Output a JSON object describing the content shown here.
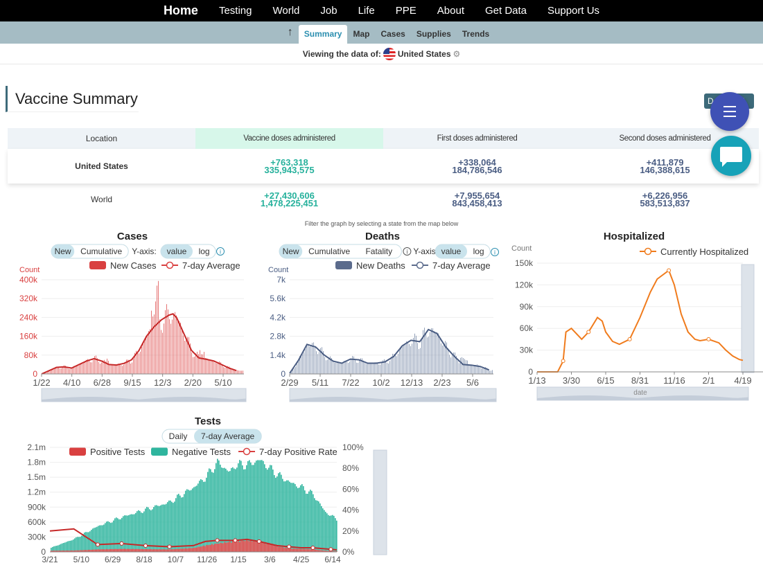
{
  "nav": {
    "items": [
      "Home",
      "Testing",
      "World",
      "Job",
      "Life",
      "PPE",
      "About",
      "Get Data",
      "Support Us"
    ]
  },
  "subnav": {
    "items": [
      "Summary",
      "Map",
      "Cases",
      "Supplies",
      "Trends"
    ],
    "active": "Summary"
  },
  "viewing": {
    "label": "Viewing the data of:",
    "country": "United States"
  },
  "section_title": "Vaccine Summary",
  "download_label": "Download",
  "vaccine_table": {
    "headers": [
      "Location",
      "Vaccine doses administered",
      "First doses administered",
      "Second doses administered"
    ],
    "rows": [
      {
        "location": "United States",
        "total_change": "+763,318",
        "total": "335,943,575",
        "first_change": "+338,064",
        "first": "184,786,546",
        "second_change": "+411,879",
        "second": "146,388,615"
      },
      {
        "location": "World",
        "total_change": "+27,430,606",
        "total": "1,478,225,451",
        "first_change": "+7,955,654",
        "first": "843,458,413",
        "second_change": "+6,226,956",
        "second": "583,513,837"
      }
    ]
  },
  "filter_note": "Filter the graph by selecting a state from the map below",
  "colors": {
    "cases": "#d94040",
    "deaths": "#5b6b8c",
    "hospitalized": "#f07b1c",
    "positive": "#d94040",
    "negative": "#2fb59e",
    "accent": "#3f51b5",
    "chat": "#17a2b8"
  },
  "chart_data": [
    {
      "type": "bar",
      "title": "Cases",
      "controls": {
        "mode": [
          "New",
          "Cumulative"
        ],
        "active_mode": "New",
        "yaxis_label": "Y-axis:",
        "yaxis": [
          "value",
          "log"
        ],
        "active_yaxis": "value"
      },
      "ylabel": "Count",
      "legend": [
        "New Cases",
        "7-day Average"
      ],
      "legend_position": "top-right",
      "y_ticks": [
        "0",
        "80k",
        "160k",
        "240k",
        "320k",
        "400k"
      ],
      "x_ticks": [
        "1/22",
        "4/10",
        "6/28",
        "9/15",
        "12/3",
        "2/20",
        "5/10"
      ],
      "ylim": [
        0,
        400000
      ],
      "x": [
        0,
        40,
        60,
        80,
        100,
        120,
        140,
        160,
        180,
        200,
        220,
        240,
        260,
        280,
        300,
        320,
        340,
        350,
        360,
        380,
        400,
        420,
        440,
        460,
        480,
        500,
        520
      ],
      "values": [
        0,
        28000,
        30000,
        25000,
        40000,
        55000,
        65000,
        55000,
        40000,
        38000,
        45000,
        60000,
        100000,
        160000,
        200000,
        230000,
        250000,
        255000,
        240000,
        170000,
        100000,
        68000,
        62000,
        55000,
        40000,
        25000,
        14000
      ]
    },
    {
      "type": "bar",
      "title": "Deaths",
      "controls": {
        "mode": [
          "New",
          "Cumulative",
          "Fatality"
        ],
        "active_mode": "New",
        "yaxis_label": "Y-axis:",
        "yaxis": [
          "value",
          "log"
        ],
        "active_yaxis": "value"
      },
      "ylabel": "Count",
      "legend": [
        "New Deaths",
        "7-day Average"
      ],
      "legend_position": "top-right",
      "y_ticks": [
        "0",
        "1.4k",
        "2.8k",
        "4.2k",
        "5.6k",
        "7k"
      ],
      "x_ticks": [
        "2/29",
        "5/11",
        "7/22",
        "10/2",
        "12/13",
        "2/23",
        "5/6"
      ],
      "ylim": [
        0,
        7000
      ],
      "x": [
        0,
        20,
        40,
        60,
        80,
        100,
        120,
        140,
        160,
        180,
        200,
        220,
        240,
        260,
        280,
        300,
        320,
        340,
        360,
        380,
        400,
        420,
        440,
        460
      ],
      "values": [
        50,
        1000,
        2200,
        2000,
        1400,
        950,
        800,
        1100,
        1050,
        800,
        800,
        900,
        1300,
        2100,
        2500,
        2400,
        3300,
        3000,
        2000,
        1300,
        700,
        650,
        550,
        300
      ]
    },
    {
      "type": "line",
      "title": "Hospitalized",
      "ylabel": "Count",
      "xlabel": "date",
      "legend": [
        "Currently Hospitalized"
      ],
      "legend_position": "top-right",
      "y_ticks": [
        "0",
        "30k",
        "60k",
        "90k",
        "120k",
        "150k"
      ],
      "x_ticks": [
        "1/13",
        "3/30",
        "6/15",
        "8/31",
        "11/16",
        "2/1",
        "4/19"
      ],
      "ylim": [
        0,
        150000
      ],
      "x": [
        0,
        60,
        76,
        84,
        100,
        130,
        150,
        176,
        190,
        200,
        220,
        240,
        270,
        300,
        330,
        350,
        384,
        400,
        420,
        440,
        460,
        475,
        500,
        530,
        550,
        570,
        590,
        600
      ],
      "values": [
        0,
        0,
        15000,
        55000,
        60000,
        45000,
        55000,
        75000,
        70000,
        55000,
        42000,
        38000,
        45000,
        75000,
        110000,
        128000,
        140000,
        120000,
        80000,
        55000,
        45000,
        43000,
        45000,
        40000,
        30000,
        22000,
        17000,
        16000
      ]
    },
    {
      "type": "bar",
      "title": "Tests",
      "controls": {
        "mode": [
          "Daily",
          "7-day Average"
        ],
        "active_mode": "7-day Average"
      },
      "legend": [
        "Positive Tests",
        "Negative Tests",
        "7-day Positive Rate"
      ],
      "legend_position": "top",
      "y_ticks": [
        "0",
        "300k",
        "600k",
        "900k",
        "1.2m",
        "1.5m",
        "1.8m",
        "2.1m"
      ],
      "y2_ticks": [
        "0%",
        "20%",
        "40%",
        "60%",
        "80%",
        "100%"
      ],
      "x_ticks": [
        "3/21",
        "5/10",
        "6/29",
        "8/18",
        "10/7",
        "11/26",
        "1/15",
        "3/6",
        "4/25",
        "6/14"
      ],
      "ylim": [
        0,
        2100000
      ],
      "y2lim": [
        0,
        100
      ],
      "x": [
        0,
        40,
        80,
        120,
        160,
        200,
        240,
        260,
        280,
        300,
        310,
        330,
        350,
        380,
        400,
        420,
        440,
        460,
        480
      ],
      "series": [
        {
          "name": "Negative Tests",
          "values": [
            80000,
            260000,
            520000,
            700000,
            850000,
            1000000,
            1300000,
            1500000,
            1800000,
            1600000,
            1750000,
            1750000,
            1850000,
            1550000,
            1400000,
            1300000,
            1150000,
            800000,
            650000
          ]
        },
        {
          "name": "Positive Tests",
          "values": [
            25000,
            28000,
            50000,
            60000,
            55000,
            50000,
            80000,
            130000,
            170000,
            200000,
            210000,
            230000,
            200000,
            110000,
            70000,
            60000,
            50000,
            25000,
            15000
          ]
        },
        {
          "name": "7-day Positive Rate",
          "values": [
            20,
            22,
            7,
            8,
            6,
            5,
            6,
            10,
            11,
            11,
            11,
            12,
            10,
            6,
            5,
            4,
            4,
            3,
            2
          ]
        }
      ]
    }
  ]
}
